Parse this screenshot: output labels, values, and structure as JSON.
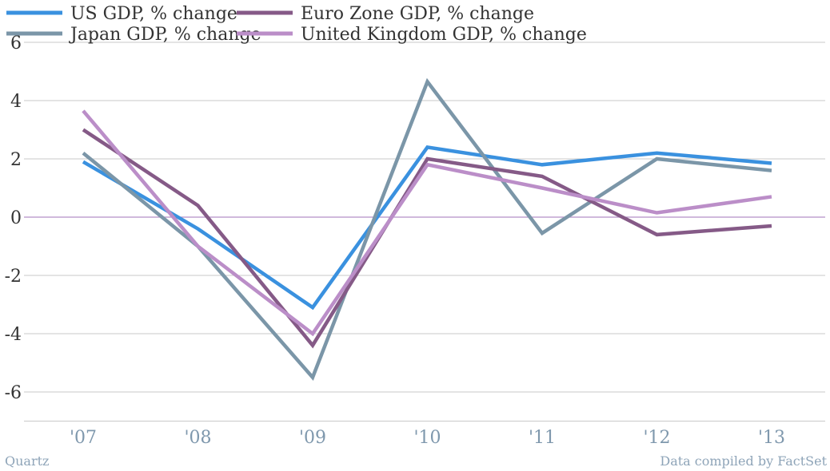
{
  "chart_data": {
    "type": "line",
    "categories": [
      "'07",
      "'08",
      "'09",
      "'10",
      "'11",
      "'12",
      "'13"
    ],
    "series": [
      {
        "name": "US GDP, % change",
        "color": "#3a91df",
        "values": [
          1.9,
          -0.4,
          -3.1,
          2.4,
          1.8,
          2.2,
          1.85
        ]
      },
      {
        "name": "Euro Zone GDP, % change",
        "color": "#855a87",
        "values": [
          3.0,
          0.4,
          -4.4,
          2.0,
          1.4,
          -0.6,
          -0.3
        ]
      },
      {
        "name": "Japan GDP, % change",
        "color": "#7b96a8",
        "values": [
          2.2,
          -1.0,
          -5.5,
          4.65,
          -0.55,
          2.0,
          1.6
        ]
      },
      {
        "name": "United Kingdom GDP, % change",
        "color": "#bb8ec8",
        "values": [
          3.65,
          -1.0,
          -4.0,
          1.8,
          1.0,
          0.15,
          0.7
        ]
      }
    ],
    "yticks": [
      "6",
      "4",
      "2",
      "0",
      "-2",
      "-4",
      "-6"
    ],
    "ylim": [
      -7,
      6
    ],
    "grid": true,
    "legend_position": "top-left",
    "zero_line_color": "#b38fc6"
  },
  "footer": {
    "source_left": "Quartz",
    "source_right": "Data compiled by FactSet"
  }
}
